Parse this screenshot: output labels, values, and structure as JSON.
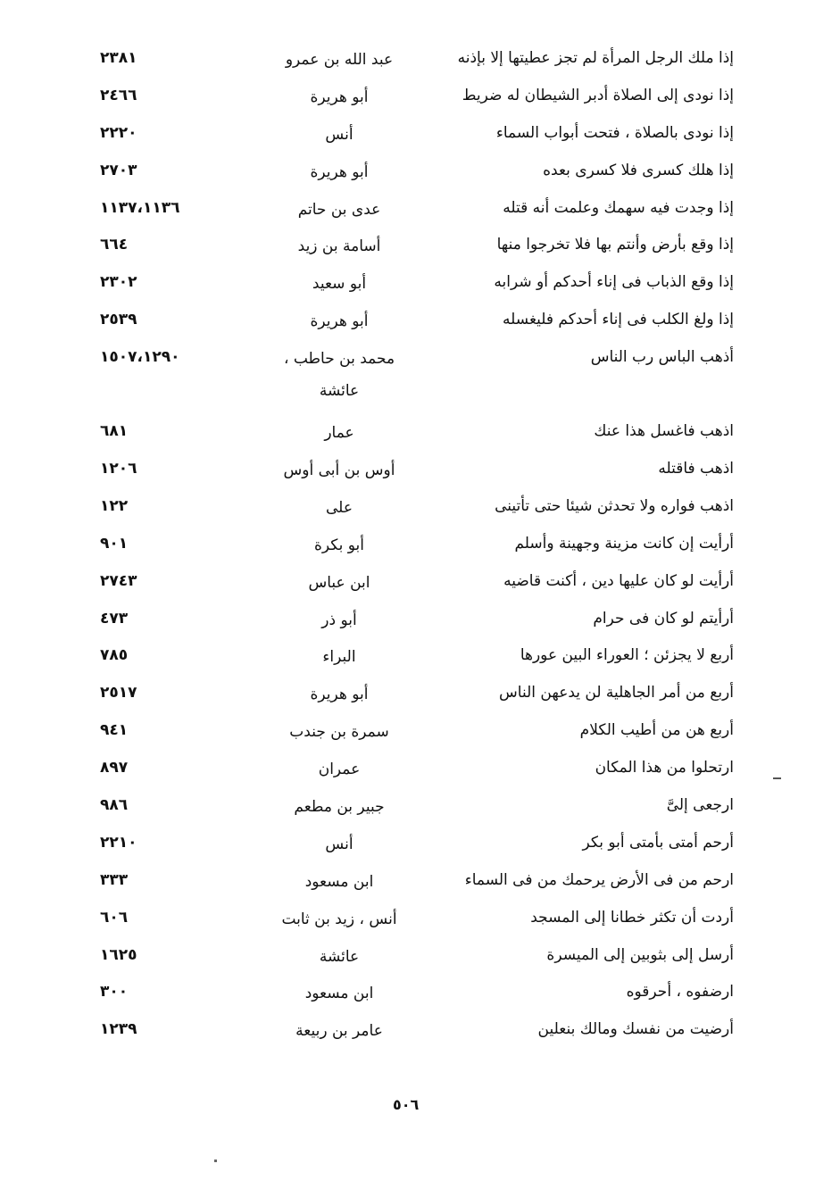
{
  "rows": [
    {
      "hadith": "إذا ملك الرجل المرأة لم تجز عطيتها إلا بإذنه",
      "narrator": "عبد الله بن عمرو",
      "ref": "٢٣٨١"
    },
    {
      "hadith": "إذا نودى إلى الصلاة أدبر الشيطان له ضريط",
      "narrator": "أبو هريرة",
      "ref": "٢٤٦٦"
    },
    {
      "hadith": "إذا نودى بالصلاة ، فتحت أبواب السماء",
      "narrator": "أنس",
      "ref": "٢٢٢٠"
    },
    {
      "hadith": "إذا هلك كسرى فلا كسرى بعده",
      "narrator": "أبو هريرة",
      "ref": "٢٧٠٣"
    },
    {
      "hadith": "إذا وجدت فيه سهمك وعلمت أنه قتله",
      "narrator": "عدى بن حاتم",
      "ref": "١١٣٧،١١٣٦"
    },
    {
      "hadith": "إذا وقع بأرض وأنتم بها فلا تخرجوا منها",
      "narrator": "أسامة بن زيد",
      "ref": "٦٦٤"
    },
    {
      "hadith": "إذا وقع الذباب فى إناء أحدكم أو شرابه",
      "narrator": "أبو سعيد",
      "ref": "٢٣٠٢"
    },
    {
      "hadith": "إذا ولغ الكلب فى إناء أحدكم فليغسله",
      "narrator": "أبو هريرة",
      "ref": "٢٥٣٩"
    },
    {
      "hadith": "أذهب الباس رب الناس",
      "narrator": "محمد بن حاطب ، عائشة",
      "ref": "١٥٠٧،١٢٩٠"
    },
    {
      "hadith": "اذهب فاغسل هذا عنك",
      "narrator": "عمار",
      "ref": "٦٨١"
    },
    {
      "hadith": "اذهب فاقتله",
      "narrator": "أوس بن أبى أوس",
      "ref": "١٢٠٦"
    },
    {
      "hadith": "اذهب فواره ولا تحدثن شيئا حتى تأتينى",
      "narrator": "على",
      "ref": "١٢٢"
    },
    {
      "hadith": "أرأيت إن كانت مزينة وجهينة وأسلم",
      "narrator": "أبو بكرة",
      "ref": "٩٠١"
    },
    {
      "hadith": "أرأيت لو كان عليها دين ، أكنت قاضيه",
      "narrator": "ابن عباس",
      "ref": "٢٧٤٣"
    },
    {
      "hadith": "أرأيتم لو كان فى حرام",
      "narrator": "أبو ذر",
      "ref": "٤٧٣"
    },
    {
      "hadith": "أربع لا يجزئن ؛ العوراء البين عورها",
      "narrator": "البراء",
      "ref": "٧٨٥"
    },
    {
      "hadith": "أربع من أمر الجاهلية لن يدعهن الناس",
      "narrator": "أبو هريرة",
      "ref": "٢٥١٧"
    },
    {
      "hadith": "أربع هن من أطيب الكلام",
      "narrator": "سمرة بن جندب",
      "ref": "٩٤١"
    },
    {
      "hadith": "ارتحلوا من هذا المكان",
      "narrator": "عمران",
      "ref": "٨٩٧"
    },
    {
      "hadith": "ارجعى إلىَّ",
      "narrator": "جبير بن مطعم",
      "ref": "٩٨٦"
    },
    {
      "hadith": "أرحم أمتى بأمتى أبو بكر",
      "narrator": "أنس",
      "ref": "٢٢١٠"
    },
    {
      "hadith": "ارحم من فى الأرض يرحمك من فى السماء",
      "narrator": "ابن مسعود",
      "ref": "٣٣٣"
    },
    {
      "hadith": "أردت أن تكثر خطانا إلى المسجد",
      "narrator": "أنس ، زيد بن ثابت",
      "ref": "٦٠٦"
    },
    {
      "hadith": "أرسل إلى بثوبين إلى الميسرة",
      "narrator": "عائشة",
      "ref": "١٦٢٥"
    },
    {
      "hadith": "ارضفوه ، أحرقوه",
      "narrator": "ابن مسعود",
      "ref": "٣٠٠"
    },
    {
      "hadith": "أرضيت من نفسك ومالك بنعلين",
      "narrator": "عامر بن ربيعة",
      "ref": "١٢٣٩"
    }
  ],
  "page_number": "٥٠٦"
}
